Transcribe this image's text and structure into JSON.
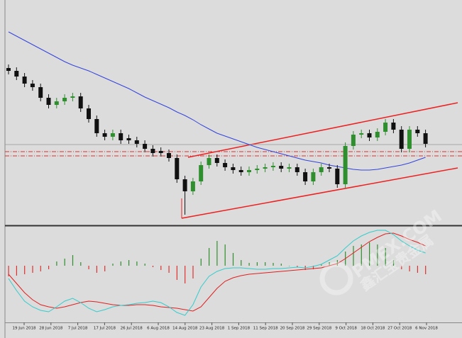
{
  "chart_data": [
    {
      "type": "candlestick",
      "ylim": [
        0,
        318
      ],
      "colors": {
        "up": "#2f8f2f",
        "down": "#111111",
        "ma": "#3344dd",
        "level": "#999999",
        "dash_level": "#e03030",
        "channel": "#ee2020"
      },
      "open": [
        222,
        218,
        210,
        200,
        195,
        180,
        170,
        175,
        180,
        182,
        165,
        150,
        130,
        125,
        130,
        123,
        120,
        115,
        108,
        105,
        102,
        95,
        65,
        48,
        62,
        85,
        95,
        88,
        82,
        78,
        75,
        78,
        80,
        82,
        84,
        80,
        82,
        75,
        62,
        75,
        82,
        80,
        58,
        112,
        128,
        130,
        124,
        132,
        145,
        135,
        108,
        135,
        130
      ],
      "high": [
        227,
        223,
        215,
        205,
        200,
        185,
        180,
        185,
        187,
        187,
        170,
        155,
        135,
        135,
        135,
        128,
        125,
        120,
        113,
        110,
        107,
        100,
        70,
        67,
        90,
        100,
        100,
        93,
        87,
        83,
        83,
        85,
        87,
        89,
        89,
        87,
        87,
        80,
        80,
        87,
        87,
        85,
        117,
        133,
        135,
        135,
        137,
        150,
        150,
        140,
        140,
        140,
        135
      ],
      "low": [
        213,
        205,
        195,
        190,
        175,
        165,
        165,
        170,
        175,
        160,
        145,
        125,
        120,
        120,
        115,
        115,
        110,
        103,
        97,
        97,
        90,
        60,
        15,
        43,
        57,
        80,
        83,
        77,
        73,
        70,
        70,
        73,
        75,
        77,
        75,
        75,
        70,
        57,
        57,
        70,
        75,
        53,
        53,
        107,
        123,
        119,
        119,
        127,
        130,
        103,
        103,
        125,
        110
      ],
      "close": [
        218,
        210,
        200,
        195,
        180,
        170,
        175,
        180,
        182,
        165,
        150,
        130,
        125,
        130,
        120,
        120,
        115,
        108,
        102,
        102,
        95,
        65,
        48,
        62,
        85,
        95,
        88,
        82,
        78,
        75,
        78,
        80,
        82,
        84,
        80,
        82,
        75,
        62,
        75,
        82,
        80,
        58,
        112,
        128,
        130,
        124,
        132,
        145,
        135,
        108,
        135,
        130,
        115
      ],
      "ma": [
        273,
        267,
        261,
        255,
        249,
        243,
        237,
        231,
        226,
        222,
        218,
        213,
        208,
        203,
        198,
        193,
        187,
        181,
        176,
        171,
        166,
        160,
        155,
        149,
        142,
        136,
        130,
        126,
        122,
        118,
        114,
        110,
        107,
        104,
        101,
        98,
        95,
        92,
        90,
        88,
        85,
        83,
        81,
        79,
        78,
        78,
        79,
        81,
        83,
        85,
        88,
        92,
        96
      ],
      "level": 114,
      "dash_levels": [
        104,
        98
      ]
    },
    {
      "type": "oscillator",
      "ylim": [
        -80,
        53
      ],
      "colors": {
        "up": "#2f8f2f",
        "down": "#e03030",
        "main": "#e02020",
        "signal": "#33cccc"
      },
      "histogram": [
        -15,
        -14,
        -12,
        -10,
        -8,
        -5,
        6,
        10,
        15,
        5,
        -5,
        -10,
        -8,
        3,
        6,
        8,
        6,
        3,
        -2,
        -6,
        -10,
        -20,
        -25,
        -18,
        10,
        25,
        35,
        30,
        18,
        8,
        4,
        5,
        5,
        4,
        3,
        0,
        -2,
        -6,
        -5,
        2,
        5,
        8,
        20,
        28,
        30,
        33,
        30,
        25,
        8,
        -5,
        -8,
        -10,
        -12
      ],
      "main": [
        -12,
        -25,
        -38,
        -48,
        -55,
        -58,
        -60,
        -58,
        -55,
        -52,
        -50,
        -51,
        -53,
        -55,
        -56,
        -56,
        -55,
        -55,
        -56,
        -58,
        -59,
        -60,
        -62,
        -64,
        -58,
        -45,
        -32,
        -22,
        -17,
        -14,
        -12,
        -11,
        -10,
        -9,
        -8,
        -7,
        -6,
        -5,
        -4,
        -3,
        0,
        3,
        10,
        18,
        26,
        34,
        40,
        45,
        46,
        42,
        37,
        33,
        28
      ],
      "signal": [
        -18,
        -35,
        -50,
        -58,
        -63,
        -65,
        -58,
        -50,
        -46,
        -52,
        -60,
        -65,
        -62,
        -58,
        -56,
        -55,
        -53,
        -52,
        -50,
        -52,
        -58,
        -66,
        -70,
        -55,
        -30,
        -15,
        -8,
        -4,
        -3,
        -3,
        -4,
        -5,
        -5,
        -4,
        -4,
        -3,
        -2,
        -3,
        -1,
        2,
        8,
        14,
        25,
        35,
        42,
        47,
        50,
        50,
        44,
        35,
        28,
        22,
        18
      ]
    }
  ],
  "x_labels": [
    "19 Jun 2018",
    "28 Jun 2018",
    "7 Jul 2018",
    "17 Jul 2018",
    "26 Jul 2018",
    "6 Aug 2018",
    "14 Aug 2018",
    "23 Aug 2018",
    "1 Sep 2018",
    "11 Sep 2018",
    "20 Sep 2018",
    "29 Sep 2018",
    "9 Oct 2018",
    "18 Oct 2018",
    "27 Oct 2018",
    "6 Nov 2018"
  ],
  "watermark": {
    "brand": "PMEX.COM",
    "name": "鑫汇宝贵金属"
  }
}
